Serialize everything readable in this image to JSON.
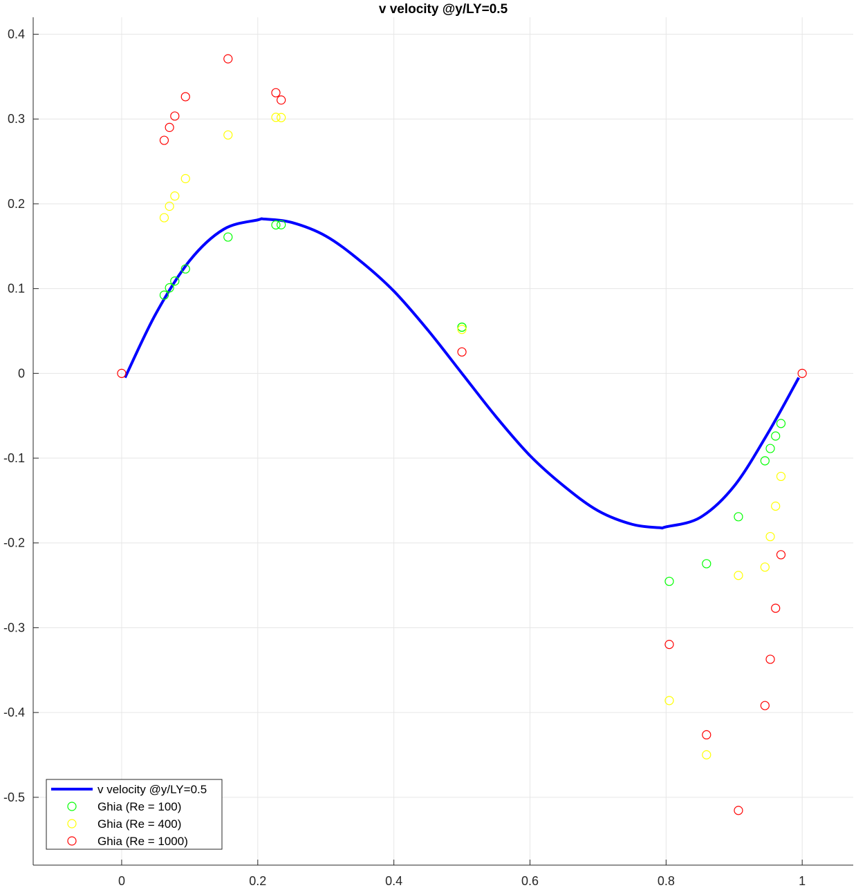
{
  "chart_data": {
    "type": "line",
    "title": "v velocity @y/LY=0.5",
    "xlabel": "",
    "ylabel": "",
    "xlim": [
      -0.13,
      1.075
    ],
    "ylim": [
      -0.58,
      0.42
    ],
    "x_ticks": [
      0,
      0.2,
      0.4,
      0.6,
      0.8,
      1
    ],
    "x_tick_labels": [
      "0",
      "0.2",
      "0.4",
      "0.6",
      "0.8",
      "1"
    ],
    "y_ticks": [
      0.4,
      0.3,
      0.2,
      0.1,
      0,
      -0.1,
      -0.2,
      -0.3,
      -0.4,
      -0.5
    ],
    "y_tick_labels": [
      "0.4",
      "0.3",
      "0.2",
      "0.1",
      "0",
      "-0.1",
      "-0.2",
      "-0.3",
      "-0.4",
      "-0.5"
    ],
    "grid": true,
    "legend_position": "bottom-left",
    "line_series": {
      "name": "v velocity @y/LY=0.5",
      "color": "#0000ff",
      "x": [
        0.005,
        0.05,
        0.1,
        0.15,
        0.2,
        0.21,
        0.25,
        0.3,
        0.35,
        0.4,
        0.45,
        0.5,
        0.55,
        0.6,
        0.65,
        0.7,
        0.75,
        0.79,
        0.8,
        0.85,
        0.9,
        0.95,
        0.995
      ],
      "y": [
        -0.005,
        0.07,
        0.133,
        0.17,
        0.181,
        0.182,
        0.178,
        0.162,
        0.133,
        0.097,
        0.051,
        0.0,
        -0.051,
        -0.097,
        -0.133,
        -0.162,
        -0.178,
        -0.182,
        -0.181,
        -0.17,
        -0.133,
        -0.07,
        -0.005
      ]
    },
    "marker_series": [
      {
        "name": "Ghia (Re = 100)",
        "color": "#00ff00",
        "x": [
          0.0625,
          0.0703,
          0.0781,
          0.0938,
          0.1563,
          0.2266,
          0.2344,
          0.5,
          0.5,
          0.8047,
          0.8594,
          0.9063,
          0.9453,
          0.9531,
          0.9609,
          0.9688
        ],
        "y": [
          0.0923,
          0.1009,
          0.1089,
          0.1232,
          0.1608,
          0.1751,
          0.1753,
          0.0545,
          0.0545,
          -0.2453,
          -0.2245,
          -0.1691,
          -0.1031,
          -0.0886,
          -0.0739,
          -0.0591
        ]
      },
      {
        "name": "Ghia (Re = 400)",
        "color": "#ffff00",
        "x": [
          0.0625,
          0.0703,
          0.0781,
          0.0938,
          0.1563,
          0.2266,
          0.2344,
          0.5,
          0.8047,
          0.8594,
          0.9063,
          0.9453,
          0.9531,
          0.9609,
          0.9688
        ],
        "y": [
          0.1836,
          0.1971,
          0.2092,
          0.2297,
          0.2812,
          0.302,
          0.3017,
          0.0519,
          -0.3859,
          -0.4499,
          -0.2383,
          -0.2285,
          -0.1925,
          -0.1566,
          -0.1215
        ]
      },
      {
        "name": "Ghia (Re = 1000)",
        "color": "#ff0000",
        "x": [
          0.0,
          0.0625,
          0.0703,
          0.0781,
          0.0938,
          0.1563,
          0.2266,
          0.2344,
          0.5,
          0.8047,
          0.8594,
          0.9063,
          0.9453,
          0.9531,
          0.9609,
          0.9688,
          1.0
        ],
        "y": [
          0.0,
          0.2749,
          0.2901,
          0.3035,
          0.3263,
          0.371,
          0.331,
          0.3224,
          0.0253,
          -0.3197,
          -0.4263,
          -0.5155,
          -0.3918,
          -0.3372,
          -0.277,
          -0.2139,
          0.0
        ]
      }
    ]
  }
}
